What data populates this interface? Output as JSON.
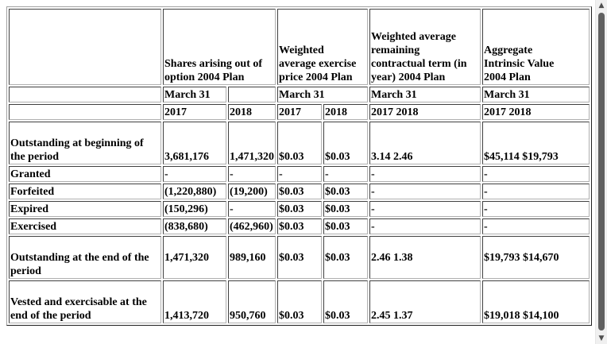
{
  "header": {
    "shares_title": "Shares arising out of option 2004 Plan",
    "wtd_price_title": "Weighted average exercise price 2004 Plan",
    "wtd_term_title": "Weighted average remaining contractual term (in year) 2004 Plan",
    "intrinsic_title": "Aggregate Intrinsic Value 2004 Plan",
    "march31": "March 31",
    "y2017": "2017",
    "y2018": "2018",
    "years_combined": "2017 2018"
  },
  "rows": [
    {
      "label": "Outstanding at beginning of the period",
      "s2017": "3,681,176",
      "s2018": "1,471,320",
      "p2017": "$0.03",
      "p2018": "$0.03",
      "term": "3.14 2.46",
      "value": "$45,114 $19,793"
    },
    {
      "label": "Granted",
      "s2017": "-",
      "s2018": "-",
      "p2017": "-",
      "p2018": "-",
      "term": "-",
      "value": "-"
    },
    {
      "label": "Forfeited",
      "s2017": "(1,220,880)",
      "s2018": "(19,200)",
      "p2017": "$0.03",
      "p2018": "$0.03",
      "term": "-",
      "value": "-"
    },
    {
      "label": "Expired",
      "s2017": "(150,296)",
      "s2018": "-",
      "p2017": "$0.03",
      "p2018": "$0.03",
      "term": "-",
      "value": "-"
    },
    {
      "label": "Exercised",
      "s2017": "(838,680)",
      "s2018": "(462,960)",
      "p2017": "$0.03",
      "p2018": "$0.03",
      "term": "-",
      "value": "-"
    },
    {
      "label": "Outstanding at the end of the period",
      "s2017": "1,471,320",
      "s2018": "989,160",
      "p2017": "$0.03",
      "p2018": "$0.03",
      "term": "2.46 1.38",
      "value": "$19,793 $14,670"
    },
    {
      "label": "Vested and exercisable at the end of the period",
      "s2017": "1,413,720",
      "s2018": "950,760",
      "p2017": "$0.03",
      "p2018": "$0.03",
      "term": "2.45 1.37",
      "value": "$19,018 $14,100"
    }
  ],
  "icons": {
    "scroll_up": "triangle-up-icon",
    "scroll_down": "triangle-down-icon"
  }
}
